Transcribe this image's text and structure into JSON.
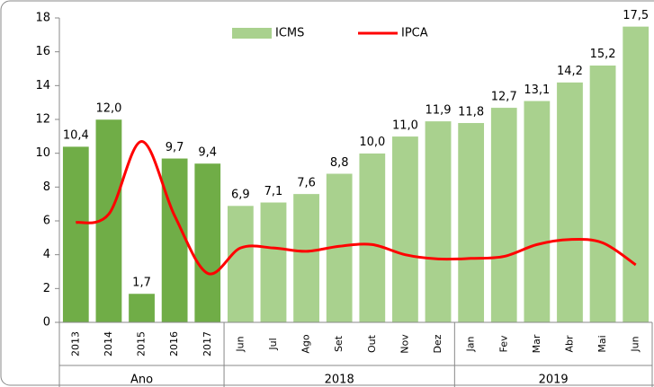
{
  "chart_data": {
    "type": "bar-line",
    "groups": [
      {
        "name": "Ano",
        "categories": [
          "2013",
          "2014",
          "2015",
          "2016",
          "2017"
        ]
      },
      {
        "name": "2018",
        "categories": [
          "Jun",
          "Jul",
          "Ago",
          "Set",
          "Out",
          "Nov",
          "Dez"
        ]
      },
      {
        "name": "2019",
        "categories": [
          "Jan",
          "Fev",
          "Mar",
          "Abr",
          "Mai",
          "Jun"
        ]
      }
    ],
    "series": [
      {
        "name": "ICMS",
        "type": "bar",
        "color": "#a9d18e",
        "colors": [
          "#70ad47",
          "#70ad47",
          "#70ad47",
          "#70ad47",
          "#70ad47",
          "#a9d18e",
          "#a9d18e",
          "#a9d18e",
          "#a9d18e",
          "#a9d18e",
          "#a9d18e",
          "#a9d18e",
          "#a9d18e",
          "#a9d18e",
          "#a9d18e",
          "#a9d18e",
          "#a9d18e",
          "#a9d18e"
        ],
        "values": [
          10.4,
          12.0,
          1.7,
          9.7,
          9.4,
          6.9,
          7.1,
          7.6,
          8.8,
          10.0,
          11.0,
          11.9,
          11.8,
          12.7,
          13.1,
          14.2,
          15.2,
          17.5
        ],
        "value_labels": [
          "10,4",
          "12,0",
          "1,7",
          "9,7",
          "9,4",
          "6,9",
          "7,1",
          "7,6",
          "8,8",
          "10,0",
          "11,0",
          "11,9",
          "11,8",
          "12,7",
          "13,1",
          "14,2",
          "15,2",
          "17,5"
        ]
      },
      {
        "name": "IPCA",
        "type": "line",
        "color": "#ff0000",
        "values": [
          5.9,
          6.4,
          10.7,
          6.3,
          2.9,
          4.4,
          4.4,
          4.2,
          4.5,
          4.6,
          4.0,
          3.75,
          3.78,
          3.9,
          4.6,
          4.9,
          4.7,
          3.4
        ]
      }
    ],
    "ylim": [
      0,
      18
    ],
    "yticks": [
      0,
      2,
      4,
      6,
      8,
      10,
      12,
      14,
      16,
      18
    ],
    "grid": false,
    "legend": "top"
  }
}
